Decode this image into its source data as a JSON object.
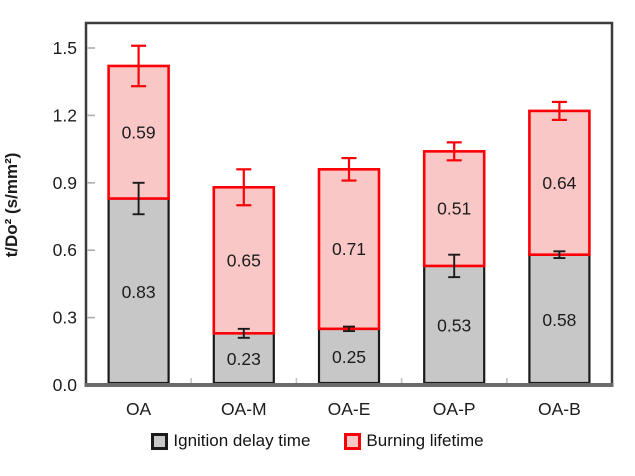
{
  "chart_data": {
    "type": "bar",
    "subtype": "stacked-vertical-with-error-bars",
    "title": "",
    "xlabel": "",
    "ylabel": "t/Do² (s/mm²)",
    "categories": [
      "OA",
      "OA-M",
      "OA-E",
      "OA-P",
      "OA-B"
    ],
    "series": [
      {
        "name": "Ignition delay time",
        "values": [
          0.83,
          0.23,
          0.25,
          0.53,
          0.58
        ],
        "value_labels": [
          "0.83",
          "0.23",
          "0.25",
          "0.53",
          "0.58"
        ],
        "errors": [
          0.07,
          0.02,
          0.01,
          0.05,
          0.015
        ],
        "fill": "#C7C7C7",
        "stroke": "#1A1A1A",
        "error_color": "#1A1A1A"
      },
      {
        "name": "Burning lifetime",
        "values": [
          0.59,
          0.65,
          0.71,
          0.51,
          0.64
        ],
        "value_labels": [
          "0.59",
          "0.65",
          "0.71",
          "0.51",
          "0.64"
        ],
        "errors": [
          0.09,
          0.08,
          0.05,
          0.04,
          0.04
        ],
        "fill": "#F9C7C6",
        "stroke": "#FB0007",
        "error_color": "#FB0007"
      }
    ],
    "stack_totals": [
      1.42,
      0.88,
      0.96,
      1.04,
      1.22
    ],
    "ylim": [
      0.0,
      1.5
    ],
    "yticks": [
      0.0,
      0.3,
      0.6,
      0.9,
      1.2,
      1.5
    ],
    "ytick_labels": [
      "0.0",
      "0.3",
      "0.6",
      "0.9",
      "1.2",
      "1.5"
    ],
    "grid": false,
    "legend_position": "bottom",
    "colors": {
      "plot_border": "#3B3B3B",
      "bottom_axis": "#6B6B6B",
      "tick_mark": "#ADADAD",
      "minor_tick": "#C4C4C4",
      "text": "#1C1C1C"
    }
  }
}
